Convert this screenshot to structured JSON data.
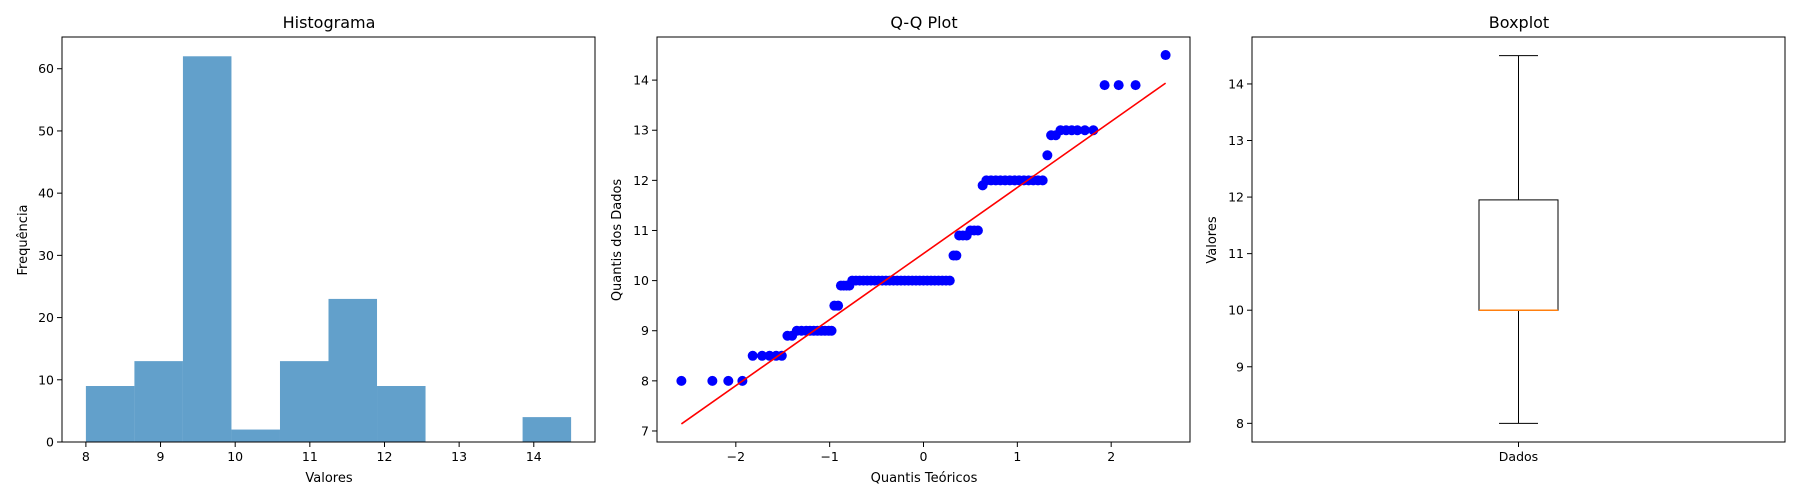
{
  "chart_data": [
    {
      "type": "bar",
      "title": "Histograma",
      "xlabel": "Valores",
      "ylabel": "Frequência",
      "bin_edges": [
        8.0,
        8.65,
        9.3,
        9.95,
        10.6,
        11.25,
        11.9,
        12.55,
        13.2,
        13.85,
        14.5
      ],
      "values": [
        9,
        13,
        62,
        2,
        13,
        23,
        9,
        0,
        0,
        4
      ],
      "color": "#62a0cb",
      "xlim": [
        7.68,
        14.82
      ],
      "ylim": [
        0,
        65.1
      ],
      "xticks": [
        "8",
        "9",
        "10",
        "11",
        "12",
        "13",
        "14"
      ],
      "yticks": [
        "0",
        "10",
        "20",
        "30",
        "40",
        "50",
        "60"
      ],
      "grid": false
    },
    {
      "type": "scatter",
      "title": "Q-Q Plot",
      "xlabel": "Quantis Teóricos",
      "ylabel": "Quantis dos Dados",
      "point_color": "#0000ff",
      "line_color": "#ff0000",
      "fit_line": {
        "x": [
          -2.58,
          2.58
        ],
        "y": [
          7.14,
          13.94
        ]
      },
      "points": [
        [
          -2.58,
          8.0
        ],
        [
          -2.25,
          8.0
        ],
        [
          -2.08,
          8.0
        ],
        [
          -1.93,
          8.0
        ],
        [
          -1.82,
          8.5
        ],
        [
          -1.72,
          8.5
        ],
        [
          -1.64,
          8.5
        ],
        [
          -1.57,
          8.5
        ],
        [
          -1.51,
          8.5
        ],
        [
          -1.45,
          8.9
        ],
        [
          -1.4,
          8.9
        ],
        [
          -1.35,
          9.0
        ],
        [
          -1.3,
          9.0
        ],
        [
          -1.25,
          9.0
        ],
        [
          -1.21,
          9.0
        ],
        [
          -1.17,
          9.0
        ],
        [
          -1.13,
          9.0
        ],
        [
          -1.09,
          9.0
        ],
        [
          -1.05,
          9.0
        ],
        [
          -1.01,
          9.0
        ],
        [
          -0.98,
          9.0
        ],
        [
          -0.95,
          9.5
        ],
        [
          -0.91,
          9.5
        ],
        [
          -0.88,
          9.9
        ],
        [
          -0.85,
          9.9
        ],
        [
          -0.82,
          9.9
        ],
        [
          -0.79,
          9.9
        ],
        [
          -0.76,
          10.0
        ],
        [
          -0.72,
          10.0
        ],
        [
          -0.68,
          10.0
        ],
        [
          -0.64,
          10.0
        ],
        [
          -0.6,
          10.0
        ],
        [
          -0.56,
          10.0
        ],
        [
          -0.52,
          10.0
        ],
        [
          -0.48,
          10.0
        ],
        [
          -0.44,
          10.0
        ],
        [
          -0.4,
          10.0
        ],
        [
          -0.36,
          10.0
        ],
        [
          -0.32,
          10.0
        ],
        [
          -0.28,
          10.0
        ],
        [
          -0.24,
          10.0
        ],
        [
          -0.2,
          10.0
        ],
        [
          -0.16,
          10.0
        ],
        [
          -0.12,
          10.0
        ],
        [
          -0.08,
          10.0
        ],
        [
          -0.04,
          10.0
        ],
        [
          0.0,
          10.0
        ],
        [
          0.04,
          10.0
        ],
        [
          0.08,
          10.0
        ],
        [
          0.12,
          10.0
        ],
        [
          0.16,
          10.0
        ],
        [
          0.2,
          10.0
        ],
        [
          0.24,
          10.0
        ],
        [
          0.28,
          10.0
        ],
        [
          0.32,
          10.5
        ],
        [
          0.35,
          10.5
        ],
        [
          0.38,
          10.9
        ],
        [
          0.42,
          10.9
        ],
        [
          0.46,
          10.9
        ],
        [
          0.5,
          11.0
        ],
        [
          0.54,
          11.0
        ],
        [
          0.58,
          11.0
        ],
        [
          0.63,
          11.9
        ],
        [
          0.67,
          12.0
        ],
        [
          0.72,
          12.0
        ],
        [
          0.77,
          12.0
        ],
        [
          0.82,
          12.0
        ],
        [
          0.87,
          12.0
        ],
        [
          0.92,
          12.0
        ],
        [
          0.97,
          12.0
        ],
        [
          1.02,
          12.0
        ],
        [
          1.07,
          12.0
        ],
        [
          1.12,
          12.0
        ],
        [
          1.17,
          12.0
        ],
        [
          1.22,
          12.0
        ],
        [
          1.27,
          12.0
        ],
        [
          1.32,
          12.5
        ],
        [
          1.36,
          12.9
        ],
        [
          1.41,
          12.9
        ],
        [
          1.46,
          13.0
        ],
        [
          1.52,
          13.0
        ],
        [
          1.58,
          13.0
        ],
        [
          1.64,
          13.0
        ],
        [
          1.72,
          13.0
        ],
        [
          1.81,
          13.0
        ],
        [
          1.93,
          13.9
        ],
        [
          2.08,
          13.9
        ],
        [
          2.26,
          13.9
        ],
        [
          2.58,
          14.5
        ]
      ],
      "xlim": [
        -2.84,
        2.84
      ],
      "ylim": [
        6.78,
        14.86
      ],
      "xticks": [
        "−2",
        "−1",
        "0",
        "1",
        "2"
      ],
      "yticks": [
        "7",
        "8",
        "9",
        "10",
        "11",
        "12",
        "13",
        "14"
      ],
      "grid": false
    },
    {
      "type": "box",
      "title": "Boxplot",
      "ylabel": "Valores",
      "categories": [
        "Dados"
      ],
      "whisker_low": 8.0,
      "q1": 10.0,
      "median": 10.0,
      "q3": 11.95,
      "whisker_high": 14.5,
      "median_color": "#ff7f0e",
      "ylim": [
        7.67,
        14.83
      ],
      "yticks": [
        "8",
        "9",
        "10",
        "11",
        "12",
        "13",
        "14"
      ],
      "grid": false
    }
  ]
}
